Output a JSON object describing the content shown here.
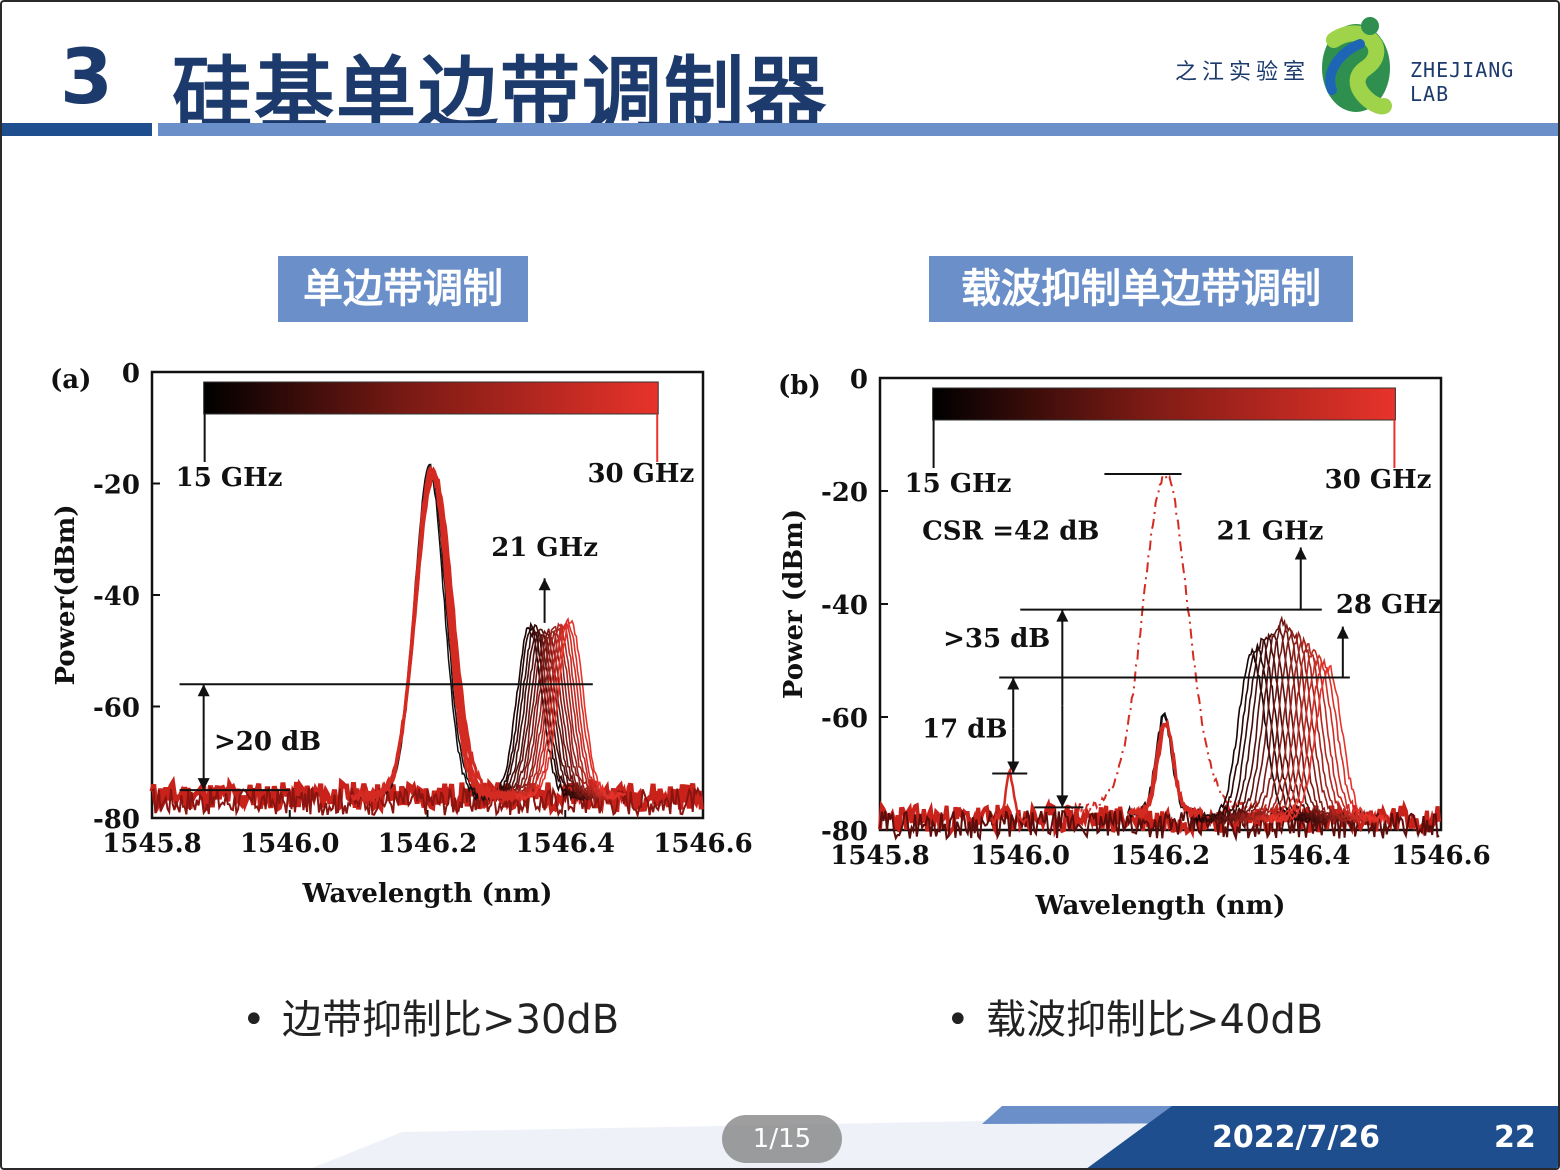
{
  "header": {
    "section_number": "3",
    "title": "硅基单边带调制器",
    "logo_cn": "之江实验室",
    "logo_en": "ZHEJIANG LAB"
  },
  "badges": {
    "left": "单边带调制",
    "right": "载波抑制单边带调制"
  },
  "chart_data": [
    {
      "type": "line",
      "panel_label": "(a)",
      "xlabel": "Wavelength (nm)",
      "ylabel": "Power(dBm)",
      "xlim": [
        1545.8,
        1546.6
      ],
      "ylim": [
        -80,
        0
      ],
      "xticks": [
        "1545.8",
        "1546.0",
        "1546.2",
        "1546.4",
        "1546.6"
      ],
      "yticks": [
        "0",
        "-20",
        "-40",
        "-60",
        "-80"
      ],
      "colorbar": {
        "start_label": "15 GHz",
        "end_label": "30 GHz",
        "start_color": "#000000",
        "end_color": "#e8332a"
      },
      "carrier": {
        "center": 1546.207,
        "peak": -17,
        "floor": -76
      },
      "sideband": {
        "peak": -45,
        "floor": -76,
        "frequencies_ghz": [
          15,
          16,
          17,
          18,
          19,
          20,
          21,
          22,
          23,
          24,
          25,
          26,
          27,
          28,
          29,
          30
        ],
        "start_center": 1546.348,
        "end_center": 1546.408
      },
      "annotations": [
        {
          "text": "21 GHz",
          "x": 1546.37,
          "y": -33
        },
        {
          "text": ">20 dB",
          "x": 1545.89,
          "y": -66
        },
        {
          "text": "15 GHz",
          "x": 1545.83,
          "y": -19
        },
        {
          "text": "30 GHz",
          "x": 1546.47,
          "y": -18
        }
      ],
      "reference_levels": {
        "upper": -56,
        "lower": -75
      }
    },
    {
      "type": "line",
      "panel_label": "(b)",
      "xlabel": "Wavelength (nm)",
      "ylabel": "Power (dBm)",
      "xlim": [
        1545.8,
        1546.6
      ],
      "ylim": [
        -80,
        0
      ],
      "xticks": [
        "1545.8",
        "1546.0",
        "1546.2",
        "1546.4",
        "1546.6"
      ],
      "yticks": [
        "0",
        "-20",
        "-40",
        "-60",
        "-80"
      ],
      "colorbar": {
        "start_label": "15 GHz",
        "end_label": "30 GHz",
        "start_color": "#000000",
        "end_color": "#e8332a"
      },
      "suppressed_carrier_reference": {
        "center": 1546.207,
        "peak": -17,
        "floor": -76
      },
      "suppressed_carrier": {
        "center": 1546.207,
        "peak": -60,
        "floor": -77
      },
      "sideband": {
        "peak": -42,
        "floor": -78,
        "frequencies_ghz": [
          15,
          16,
          17,
          18,
          19,
          20,
          21,
          22,
          23,
          24,
          25,
          26,
          27,
          28,
          29,
          30
        ],
        "start_center": 1546.33,
        "end_center": 1546.44
      },
      "small_peak": {
        "center": 1545.985,
        "peak": -70
      },
      "annotations": [
        {
          "text": "15 GHz",
          "x": 1545.825,
          "y": -19
        },
        {
          "text": "30 GHz",
          "x": 1546.47,
          "y": -18
        },
        {
          "text": "CSR =42 dB",
          "x": 1545.86,
          "y": -27
        },
        {
          "text": "21 GHz",
          "x": 1546.28,
          "y": -27
        },
        {
          "text": "28 GHz",
          "x": 1546.45,
          "y": -41
        },
        {
          "text": ">35 dB",
          "x": 1545.89,
          "y": -47
        },
        {
          "text": "17 dB",
          "x": 1545.86,
          "y": -63
        }
      ],
      "reference_levels": {
        "csr_top": -17,
        "upper": -41,
        "mid": -53,
        "low": -70,
        "floor": -76
      }
    }
  ],
  "bullets": {
    "left": "边带抑制比>30dB",
    "right": "载波抑制比>40dB"
  },
  "footer": {
    "date": "2022/7/26",
    "page": "22",
    "pager": "1/15"
  }
}
